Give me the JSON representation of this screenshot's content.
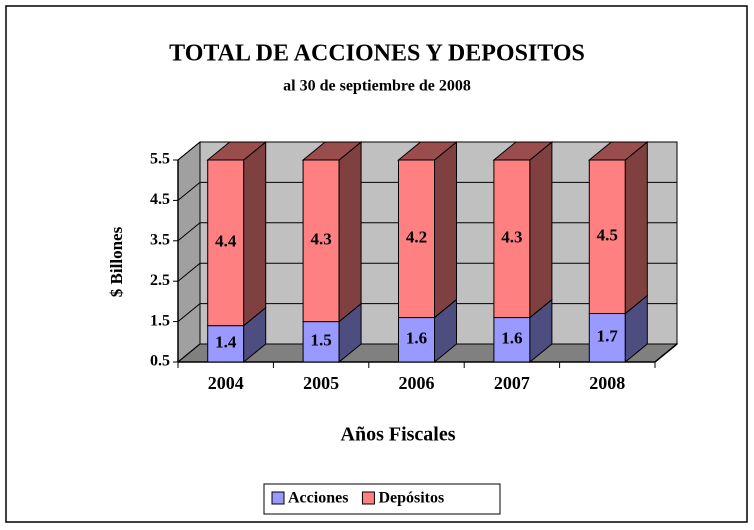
{
  "chart_data": {
    "type": "bar3d-stacked",
    "title": "TOTAL DE ACCIONES Y DEPOSITOS",
    "subtitle": "al 30 de septiembre de 2008",
    "x_label": "Años Fiscales",
    "y_label": "$ Billones",
    "categories": [
      "2004",
      "2005",
      "2006",
      "2007",
      "2008"
    ],
    "series": [
      {
        "name": "Acciones",
        "color": "#9999ff",
        "values": [
          1.4,
          1.5,
          1.6,
          1.6,
          1.7
        ]
      },
      {
        "name": "Depósitos",
        "color": "#ff8080",
        "values": [
          4.4,
          4.3,
          4.2,
          4.3,
          4.5
        ]
      }
    ],
    "ylim": [
      0.5,
      5.5
    ],
    "yticks": [
      0.5,
      1.5,
      2.5,
      3.5,
      4.5,
      5.5
    ],
    "grid": true,
    "legend": "bottom"
  }
}
